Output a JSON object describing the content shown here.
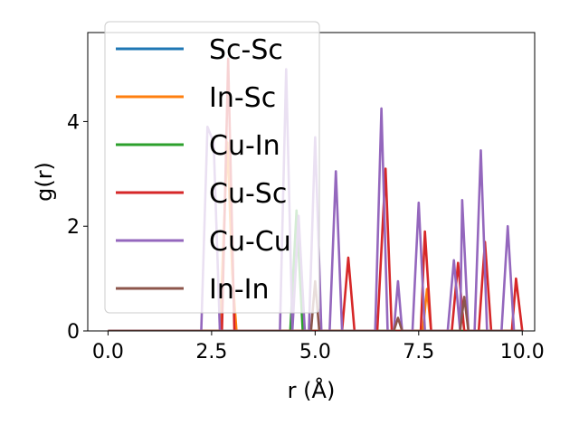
{
  "chart_data": {
    "type": "line",
    "title": "",
    "xlabel": "r (Å)",
    "ylabel": "g(r)",
    "xlim": [
      -0.49,
      10.3
    ],
    "ylim": [
      0,
      5.7
    ],
    "xticks": [
      0.0,
      2.5,
      5.0,
      7.5,
      10.0
    ],
    "xtick_labels": [
      "0.0",
      "2.5",
      "5.0",
      "7.5",
      "10.0"
    ],
    "yticks": [
      0,
      2,
      4
    ],
    "ytick_labels": [
      "0",
      "2",
      "4"
    ],
    "grid": false,
    "legend_position": "upper-left",
    "series": [
      {
        "name": "Sc-Sc",
        "color": "#1f77b4",
        "points": [
          [
            0,
            0
          ],
          [
            10.0,
            0
          ]
        ]
      },
      {
        "name": "In-Sc",
        "color": "#ff7f0e",
        "points": [
          [
            0,
            0
          ],
          [
            2.7,
            0
          ],
          [
            2.88,
            3.6
          ],
          [
            3.0,
            1.1
          ],
          [
            3.1,
            0
          ],
          [
            7.6,
            0
          ],
          [
            7.7,
            0.8
          ],
          [
            7.8,
            0
          ],
          [
            10.0,
            0
          ]
        ]
      },
      {
        "name": "Cu-In",
        "color": "#2ca02c",
        "points": [
          [
            0,
            0
          ],
          [
            4.4,
            0
          ],
          [
            4.55,
            2.3
          ],
          [
            4.7,
            0
          ],
          [
            10.0,
            0
          ]
        ]
      },
      {
        "name": "Cu-Sc",
        "color": "#d62728",
        "points": [
          [
            0,
            0
          ],
          [
            2.75,
            0
          ],
          [
            2.9,
            5.2
          ],
          [
            3.05,
            0
          ],
          [
            5.65,
            0
          ],
          [
            5.8,
            1.4
          ],
          [
            5.95,
            0
          ],
          [
            6.5,
            0
          ],
          [
            6.7,
            3.1
          ],
          [
            6.85,
            0
          ],
          [
            7.55,
            0
          ],
          [
            7.65,
            1.9
          ],
          [
            7.8,
            0
          ],
          [
            8.3,
            0
          ],
          [
            8.45,
            1.3
          ],
          [
            8.6,
            0
          ],
          [
            8.95,
            0
          ],
          [
            9.1,
            1.7
          ],
          [
            9.25,
            0
          ],
          [
            9.75,
            0
          ],
          [
            9.85,
            1.0
          ],
          [
            10.0,
            0
          ]
        ]
      },
      {
        "name": "Cu-Cu",
        "color": "#9467bd",
        "points": [
          [
            0,
            0
          ],
          [
            2.25,
            0
          ],
          [
            2.4,
            3.9
          ],
          [
            2.55,
            3.6
          ],
          [
            2.7,
            0
          ],
          [
            4.15,
            0
          ],
          [
            4.3,
            5.0
          ],
          [
            4.45,
            0
          ],
          [
            4.6,
            2.2
          ],
          [
            4.75,
            0
          ],
          [
            4.85,
            0
          ],
          [
            5.0,
            3.7
          ],
          [
            5.15,
            0
          ],
          [
            5.35,
            0
          ],
          [
            5.5,
            3.05
          ],
          [
            5.65,
            0
          ],
          [
            6.45,
            0
          ],
          [
            6.6,
            4.25
          ],
          [
            6.75,
            0
          ],
          [
            6.9,
            0
          ],
          [
            7.0,
            0.95
          ],
          [
            7.1,
            0
          ],
          [
            7.35,
            0
          ],
          [
            7.5,
            2.45
          ],
          [
            7.65,
            0
          ],
          [
            8.2,
            0
          ],
          [
            8.35,
            1.35
          ],
          [
            8.5,
            0
          ],
          [
            8.55,
            2.5
          ],
          [
            8.7,
            0
          ],
          [
            8.85,
            0
          ],
          [
            9.0,
            3.45
          ],
          [
            9.15,
            0
          ],
          [
            9.5,
            0
          ],
          [
            9.65,
            2.0
          ],
          [
            9.8,
            0
          ],
          [
            10.0,
            0
          ]
        ]
      },
      {
        "name": "In-In",
        "color": "#8c564b",
        "points": [
          [
            0,
            0
          ],
          [
            4.9,
            0
          ],
          [
            5.0,
            0.95
          ],
          [
            5.1,
            0
          ],
          [
            6.9,
            0
          ],
          [
            7.0,
            0.25
          ],
          [
            7.1,
            0
          ],
          [
            8.5,
            0
          ],
          [
            8.6,
            0.65
          ],
          [
            8.7,
            0
          ],
          [
            10.0,
            0
          ]
        ]
      }
    ]
  }
}
